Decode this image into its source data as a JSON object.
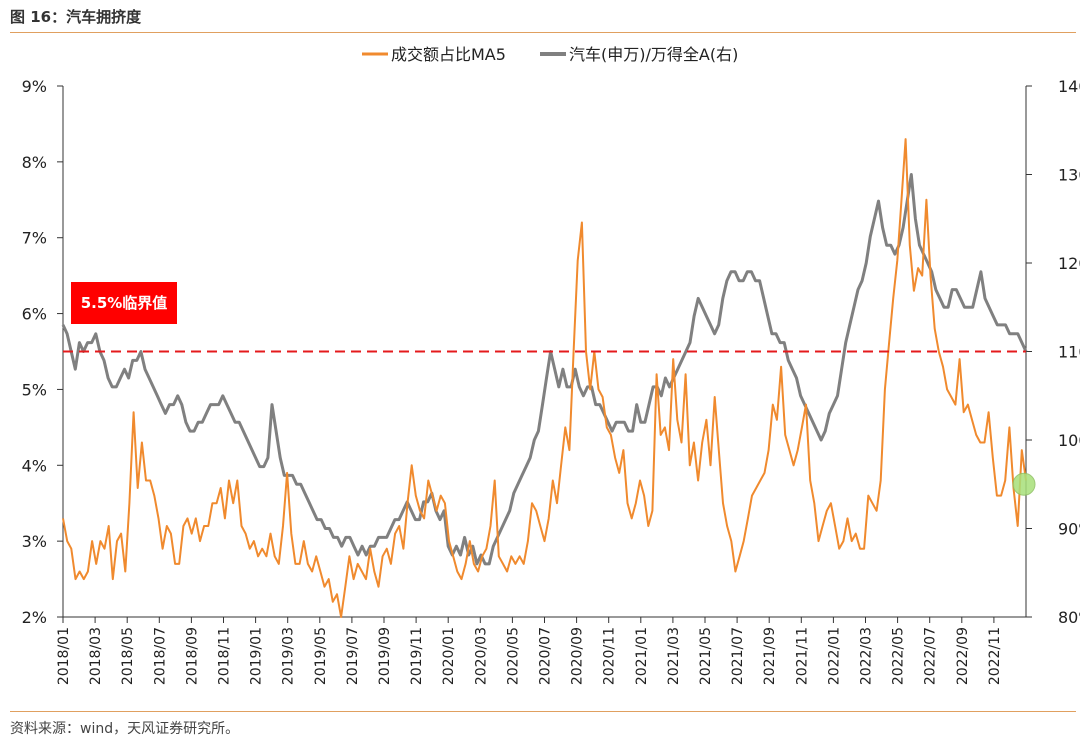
{
  "figure": {
    "title": "图 16：汽车拥挤度",
    "source": "资料来源：wind，天风证券研究所。"
  },
  "colors": {
    "series_orange": "#f08a2e",
    "series_gray": "#808080",
    "threshold": "#e41a1c",
    "annotation_bg": "#ff0000",
    "marker": "#a8e07a"
  },
  "chart_data": {
    "type": "line",
    "title": "",
    "xlabel": "",
    "ylabel": "",
    "x_ticks": [
      "2018/01",
      "2018/03",
      "2018/05",
      "2018/07",
      "2018/09",
      "2018/11",
      "2019/01",
      "2019/03",
      "2019/05",
      "2019/07",
      "2019/09",
      "2019/11",
      "2020/01",
      "2020/03",
      "2020/05",
      "2020/07",
      "2020/09",
      "2020/11",
      "2021/01",
      "2021/03",
      "2021/05",
      "2021/07",
      "2021/09",
      "2021/11",
      "2022/01",
      "2022/03",
      "2022/05",
      "2022/07",
      "2022/09",
      "2022/11"
    ],
    "y_left": {
      "ticks": [
        "2%",
        "3%",
        "4%",
        "5%",
        "6%",
        "7%",
        "8%",
        "9%"
      ],
      "range": [
        2,
        9
      ],
      "unit": "%"
    },
    "y_right": {
      "ticks": [
        "80%",
        "90%",
        "100%",
        "110%",
        "120%",
        "130%",
        "140%"
      ],
      "range": [
        80,
        140
      ],
      "unit": "%"
    },
    "legend": {
      "position": "top-center"
    },
    "grid": false,
    "series": [
      {
        "name": "成交额占比MA5",
        "axis": "left",
        "values": [
          3.3,
          3.0,
          2.9,
          2.5,
          2.6,
          2.5,
          2.6,
          3.0,
          2.7,
          3.0,
          2.9,
          3.2,
          2.5,
          3.0,
          3.1,
          2.6,
          3.5,
          4.7,
          3.7,
          4.3,
          3.8,
          3.8,
          3.6,
          3.3,
          2.9,
          3.2,
          3.1,
          2.7,
          2.7,
          3.2,
          3.3,
          3.1,
          3.3,
          3.0,
          3.2,
          3.2,
          3.5,
          3.5,
          3.7,
          3.3,
          3.8,
          3.5,
          3.8,
          3.2,
          3.1,
          2.9,
          3.0,
          2.8,
          2.9,
          2.8,
          3.1,
          2.8,
          2.7,
          3.2,
          3.9,
          3.1,
          2.7,
          2.7,
          3.0,
          2.7,
          2.6,
          2.8,
          2.6,
          2.4,
          2.5,
          2.2,
          2.3,
          2.0,
          2.4,
          2.8,
          2.5,
          2.7,
          2.6,
          2.5,
          2.9,
          2.6,
          2.4,
          2.8,
          2.9,
          2.7,
          3.1,
          3.2,
          2.9,
          3.5,
          4.0,
          3.6,
          3.4,
          3.3,
          3.8,
          3.6,
          3.4,
          3.6,
          3.5,
          3.0,
          2.8,
          2.6,
          2.5,
          2.7,
          3.0,
          2.7,
          2.6,
          2.8,
          2.9,
          3.2,
          3.8,
          2.8,
          2.7,
          2.6,
          2.8,
          2.7,
          2.8,
          2.7,
          3.0,
          3.5,
          3.4,
          3.2,
          3.0,
          3.3,
          3.8,
          3.5,
          4.0,
          4.5,
          4.2,
          5.5,
          6.7,
          7.2,
          5.5,
          5.0,
          5.5,
          5.0,
          4.9,
          4.5,
          4.4,
          4.1,
          3.9,
          4.2,
          3.5,
          3.3,
          3.5,
          3.8,
          3.6,
          3.2,
          3.4,
          5.2,
          4.4,
          4.5,
          4.2,
          5.4,
          4.6,
          4.3,
          5.2,
          4.0,
          4.3,
          3.8,
          4.3,
          4.6,
          4.0,
          4.9,
          4.2,
          3.5,
          3.2,
          3.0,
          2.6,
          2.8,
          3.0,
          3.3,
          3.6,
          3.7,
          3.8,
          3.9,
          4.2,
          4.8,
          4.6,
          5.3,
          4.4,
          4.2,
          4.0,
          4.2,
          4.5,
          4.8,
          3.8,
          3.5,
          3.0,
          3.2,
          3.4,
          3.5,
          3.2,
          2.9,
          3.0,
          3.3,
          3.0,
          3.1,
          2.9,
          2.9,
          3.6,
          3.5,
          3.4,
          3.8,
          5.0,
          5.6,
          6.2,
          6.7,
          7.5,
          8.3,
          6.9,
          6.3,
          6.6,
          6.5,
          7.5,
          6.5,
          5.8,
          5.5,
          5.3,
          5.0,
          4.9,
          4.8,
          5.4,
          4.7,
          4.8,
          4.6,
          4.4,
          4.3,
          4.3,
          4.7,
          4.1,
          3.6,
          3.6,
          3.8,
          4.5,
          3.7,
          3.2,
          4.2,
          3.8
        ]
      },
      {
        "name": "汽车(申万)/万得全A(右)",
        "axis": "right",
        "values": [
          113,
          112,
          110,
          108,
          111,
          110,
          111,
          111,
          112,
          110,
          109,
          107,
          106,
          106,
          107,
          108,
          107,
          109,
          109,
          110,
          108,
          107,
          106,
          105,
          104,
          103,
          104,
          104,
          105,
          104,
          102,
          101,
          101,
          102,
          102,
          103,
          104,
          104,
          104,
          105,
          104,
          103,
          102,
          102,
          101,
          100,
          99,
          98,
          97,
          97,
          98,
          104,
          101,
          98,
          96,
          96,
          96,
          95,
          95,
          94,
          93,
          92,
          91,
          91,
          90,
          90,
          89,
          89,
          88,
          89,
          89,
          88,
          87,
          88,
          87,
          88,
          88,
          89,
          89,
          89,
          90,
          91,
          91,
          92,
          93,
          92,
          91,
          91,
          93,
          93,
          94,
          92,
          91,
          92,
          88,
          87,
          88,
          87,
          89,
          87,
          88,
          86,
          87,
          86,
          86,
          88,
          89,
          90,
          91,
          92,
          94,
          95,
          96,
          97,
          98,
          100,
          101,
          104,
          107,
          110,
          108,
          106,
          108,
          106,
          106,
          108,
          106,
          105,
          106,
          106,
          104,
          104,
          103,
          102,
          101,
          102,
          102,
          102,
          101,
          101,
          104,
          102,
          102,
          104,
          106,
          106,
          105,
          107,
          106,
          107,
          108,
          109,
          110,
          111,
          114,
          116,
          115,
          114,
          113,
          112,
          113,
          116,
          118,
          119,
          119,
          118,
          118,
          119,
          119,
          118,
          118,
          116,
          114,
          112,
          112,
          111,
          111,
          109,
          108,
          107,
          105,
          104,
          103,
          102,
          101,
          100,
          101,
          103,
          104,
          105,
          108,
          111,
          113,
          115,
          117,
          118,
          120,
          123,
          125,
          127,
          124,
          122,
          122,
          121,
          122,
          124,
          127,
          130,
          125,
          122,
          121,
          120,
          119,
          117,
          116,
          115,
          115,
          117,
          117,
          116,
          115,
          115,
          115,
          117,
          119,
          116,
          115,
          114,
          113,
          113,
          113,
          112,
          112,
          112,
          111,
          110
        ]
      }
    ],
    "threshold": {
      "value": 5.5,
      "axis": "left",
      "label": "5.5%临界值"
    },
    "marker": {
      "series": "汽车(申万)/万得全A(右)",
      "value": 95
    }
  }
}
